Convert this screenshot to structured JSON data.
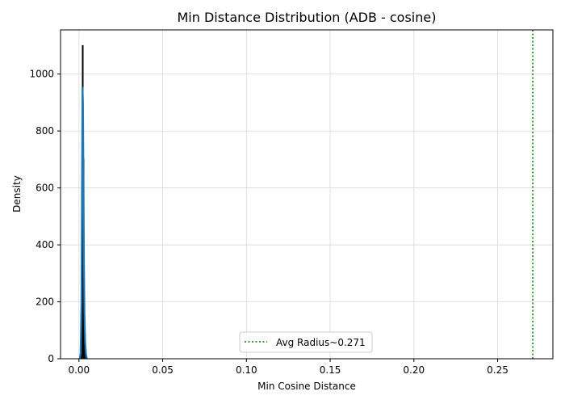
{
  "chart_data": {
    "type": "histogram",
    "title": "Min Distance Distribution (ADB - cosine)",
    "xlabel": "Min Cosine Distance",
    "ylabel": "Density",
    "xlim": [
      -0.011,
      0.283
    ],
    "ylim": [
      0,
      1155
    ],
    "x_ticks": [
      0.0,
      0.05,
      0.1,
      0.15,
      0.2,
      0.25
    ],
    "x_tick_labels": [
      "0.00",
      "0.05",
      "0.10",
      "0.15",
      "0.20",
      "0.25"
    ],
    "y_ticks": [
      0,
      200,
      400,
      600,
      800,
      1000
    ],
    "y_tick_labels": [
      "0",
      "200",
      "400",
      "600",
      "800",
      "1000"
    ],
    "grid": true,
    "bar_color": "#1f77b4",
    "hist_bins": [
      {
        "x0": 0.001,
        "x1": 0.0015,
        "density": 15
      },
      {
        "x0": 0.0015,
        "x1": 0.002,
        "density": 260
      },
      {
        "x0": 0.002,
        "x1": 0.0025,
        "density": 1100
      },
      {
        "x0": 0.0025,
        "x1": 0.003,
        "density": 700
      },
      {
        "x0": 0.003,
        "x1": 0.0035,
        "density": 150
      },
      {
        "x0": 0.0035,
        "x1": 0.004,
        "density": 30
      }
    ],
    "kde": {
      "color": "#1f77b4",
      "x": [
        0.0005,
        0.001,
        0.0015,
        0.0018,
        0.0021,
        0.0024,
        0.0027,
        0.003,
        0.0033,
        0.0037,
        0.0042,
        0.0048
      ],
      "y": [
        0,
        20,
        200,
        600,
        955,
        900,
        620,
        330,
        160,
        60,
        15,
        0
      ]
    },
    "reference_line": {
      "x": 0.271,
      "color": "#008000",
      "style": "dotted",
      "label": "Avg Radius~0.271"
    },
    "legend": {
      "position": "lower-center",
      "entries": [
        "Avg Radius~0.271"
      ]
    }
  }
}
